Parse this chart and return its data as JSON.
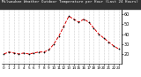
{
  "title": "Milwaukee Weather Outdoor Temperature per Hour (Last 24 Hours)",
  "hours": [
    0,
    1,
    2,
    3,
    4,
    5,
    6,
    7,
    8,
    9,
    10,
    11,
    12,
    13,
    14,
    15,
    16,
    17,
    18,
    19,
    20,
    21,
    22,
    23
  ],
  "temps": [
    20,
    22,
    21,
    20,
    21,
    20,
    21,
    22,
    22,
    24,
    30,
    38,
    48,
    58,
    55,
    52,
    55,
    52,
    46,
    40,
    36,
    32,
    28,
    25
  ],
  "line_color": "#dd0000",
  "marker_color": "#000000",
  "bg_color": "#ffffff",
  "grid_color": "#999999",
  "title_color": "#ffffff",
  "title_bg": "#333333",
  "ylim": [
    10,
    65
  ],
  "ytick_values": [
    20,
    30,
    40,
    50,
    60
  ],
  "ytick_labels": [
    "20",
    "30",
    "40",
    "50",
    "60"
  ],
  "ylabel_fontsize": 3.5,
  "xlabel_fontsize": 3.0,
  "title_fontsize": 3.0,
  "linewidth": 0.7,
  "markersize": 1.8
}
